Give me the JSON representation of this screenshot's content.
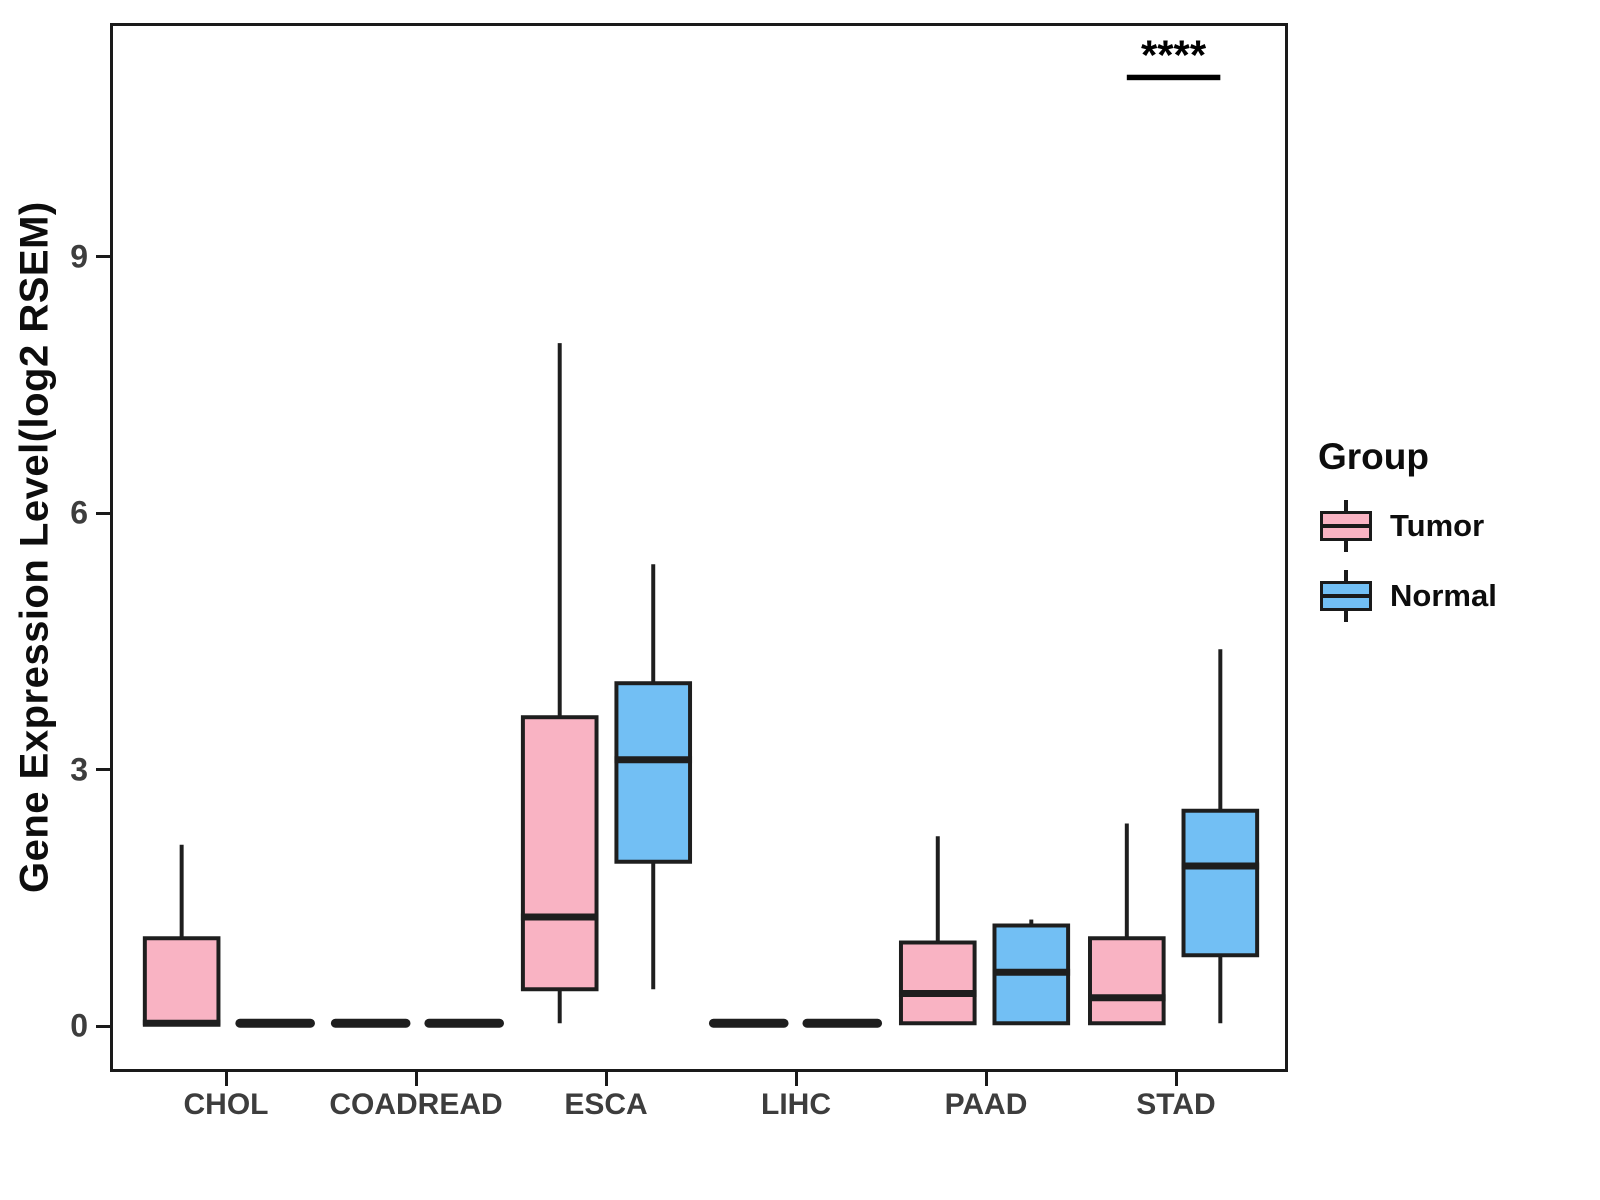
{
  "chart_data": {
    "type": "grouped_boxplot",
    "title": "",
    "xlabel": "",
    "ylabel": "Gene Expression Level(log2 RSEM)",
    "categories": [
      "CHOL",
      "COADREAD",
      "ESCA",
      "LIHC",
      "PAAD",
      "STAD"
    ],
    "y_ticks": [
      0,
      3,
      6,
      9
    ],
    "ylim": [
      -0.55,
      11.7
    ],
    "grid": false,
    "legend": {
      "title": "Group",
      "position": "right",
      "entries": [
        {
          "label": "Tumor",
          "color": "#F9B3C3"
        },
        {
          "label": "Normal",
          "color": "#72BFF4"
        }
      ]
    },
    "series": [
      {
        "name": "Tumor",
        "color": "#F9B3C3",
        "boxes": [
          {
            "category": "CHOL",
            "min": 0,
            "q1": 0,
            "median": 0,
            "q3": 1.0,
            "max": 2.1
          },
          {
            "category": "COADREAD",
            "min": 0,
            "q1": 0,
            "median": 0,
            "q3": 0,
            "max": 0
          },
          {
            "category": "ESCA",
            "min": 0,
            "q1": 0.4,
            "median": 1.25,
            "q3": 3.6,
            "max": 8.0
          },
          {
            "category": "LIHC",
            "min": 0,
            "q1": 0,
            "median": 0,
            "q3": 0,
            "max": 0
          },
          {
            "category": "PAAD",
            "min": 0,
            "q1": 0,
            "median": 0.35,
            "q3": 0.95,
            "max": 2.2
          },
          {
            "category": "STAD",
            "min": 0,
            "q1": 0,
            "median": 0.3,
            "q3": 1.0,
            "max": 2.35
          }
        ]
      },
      {
        "name": "Normal",
        "color": "#72BFF4",
        "boxes": [
          {
            "category": "CHOL",
            "min": 0,
            "q1": 0,
            "median": 0,
            "q3": 0,
            "max": 0
          },
          {
            "category": "COADREAD",
            "min": 0,
            "q1": 0,
            "median": 0,
            "q3": 0,
            "max": 0
          },
          {
            "category": "ESCA",
            "min": 0.4,
            "q1": 1.9,
            "median": 3.1,
            "q3": 4.0,
            "max": 5.4
          },
          {
            "category": "LIHC",
            "min": 0,
            "q1": 0,
            "median": 0,
            "q3": 0,
            "max": 0
          },
          {
            "category": "PAAD",
            "min": 0,
            "q1": 0,
            "median": 0.6,
            "q3": 1.15,
            "max": 1.22
          },
          {
            "category": "STAD",
            "min": 0,
            "q1": 0.8,
            "median": 1.85,
            "q3": 2.5,
            "max": 4.4
          }
        ]
      }
    ],
    "significance": {
      "label": "****",
      "category": "STAD",
      "between": [
        "Tumor",
        "Normal"
      ]
    },
    "colors": {
      "tumor_fill": "#F9B3C3",
      "normal_fill": "#72BFF4",
      "box_border": "#1E1E1E",
      "axis_text": "#3D3D3D",
      "panel_border": "#1A1A1A"
    }
  }
}
